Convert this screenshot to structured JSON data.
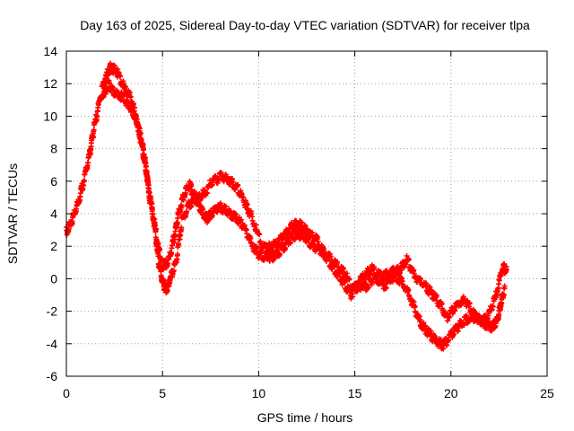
{
  "chart_data": {
    "type": "scatter",
    "title": "Day 163 of 2025, Sidereal Day-to-day VTEC variation (SDTVAR) for receiver tlpa",
    "xlabel": "GPS time / hours",
    "ylabel": "SDTVAR / TECUs",
    "xlim": [
      0,
      25
    ],
    "ylim": [
      -6,
      14
    ],
    "x_ticks": [
      0,
      5,
      10,
      15,
      20,
      25
    ],
    "y_ticks": [
      -6,
      -4,
      -2,
      0,
      2,
      4,
      6,
      8,
      10,
      12,
      14
    ],
    "x_tick_labels": [
      "0",
      "5",
      "10",
      "15",
      "20",
      "25"
    ],
    "y_tick_labels": [
      "-6",
      "-4",
      "-2",
      "0",
      "2",
      "4",
      "6",
      "8",
      "10",
      "12",
      "14"
    ],
    "grid": true,
    "marker": "+",
    "series": [
      {
        "name": "SDTVAR",
        "color": "#ff0000",
        "trace_a": [
          [
            0.0,
            2.9
          ],
          [
            0.3,
            3.6
          ],
          [
            0.6,
            4.6
          ],
          [
            0.9,
            6.0
          ],
          [
            1.2,
            7.6
          ],
          [
            1.4,
            9.0
          ],
          [
            1.7,
            10.8
          ],
          [
            2.0,
            12.3
          ],
          [
            2.3,
            13.0
          ],
          [
            2.6,
            12.8
          ],
          [
            3.0,
            11.8
          ],
          [
            3.4,
            11.0
          ],
          [
            3.7,
            9.5
          ],
          [
            4.0,
            7.7
          ],
          [
            4.2,
            6.3
          ],
          [
            4.5,
            4.0
          ],
          [
            4.8,
            1.8
          ],
          [
            5.0,
            0.8
          ],
          [
            5.3,
            1.0
          ],
          [
            5.6,
            2.5
          ],
          [
            5.8,
            3.8
          ],
          [
            6.1,
            5.1
          ],
          [
            6.4,
            5.8
          ],
          [
            6.7,
            5.0
          ],
          [
            7.0,
            4.3
          ],
          [
            7.3,
            3.7
          ],
          [
            7.6,
            4.1
          ],
          [
            8.0,
            4.4
          ],
          [
            8.4,
            4.1
          ],
          [
            8.8,
            3.8
          ],
          [
            9.2,
            3.3
          ],
          [
            9.6,
            2.2
          ],
          [
            10.0,
            1.5
          ],
          [
            10.4,
            1.3
          ],
          [
            10.8,
            1.4
          ],
          [
            11.2,
            1.8
          ],
          [
            11.6,
            2.4
          ],
          [
            12.0,
            2.8
          ],
          [
            12.4,
            2.6
          ],
          [
            12.8,
            2.0
          ],
          [
            13.2,
            1.8
          ],
          [
            13.6,
            1.2
          ],
          [
            14.0,
            0.5
          ],
          [
            14.4,
            -0.2
          ],
          [
            14.8,
            -1.0
          ],
          [
            15.2,
            -0.4
          ],
          [
            15.6,
            -0.5
          ],
          [
            16.0,
            0.1
          ],
          [
            16.5,
            -0.5
          ],
          [
            17.0,
            0.1
          ],
          [
            17.5,
            -0.2
          ],
          [
            18.0,
            -1.5
          ],
          [
            18.4,
            -2.7
          ],
          [
            18.8,
            -3.3
          ],
          [
            19.2,
            -3.8
          ],
          [
            19.6,
            -4.1
          ],
          [
            20.0,
            -3.5
          ],
          [
            20.4,
            -2.9
          ],
          [
            20.8,
            -2.5
          ],
          [
            21.3,
            -2.4
          ],
          [
            21.7,
            -2.7
          ],
          [
            22.1,
            -3.0
          ],
          [
            22.4,
            -2.6
          ],
          [
            22.6,
            -1.5
          ],
          [
            22.8,
            -0.5
          ]
        ],
        "trace_b": [
          [
            1.9,
            11.2
          ],
          [
            2.2,
            12.0
          ],
          [
            2.5,
            11.4
          ],
          [
            2.9,
            11.2
          ],
          [
            3.3,
            10.6
          ],
          [
            3.6,
            9.9
          ],
          [
            3.9,
            8.6
          ],
          [
            4.1,
            7.2
          ],
          [
            4.3,
            5.2
          ],
          [
            4.6,
            3.2
          ],
          [
            4.8,
            1.0
          ],
          [
            5.0,
            -0.2
          ],
          [
            5.2,
            -0.7
          ],
          [
            5.4,
            0.0
          ],
          [
            5.7,
            1.0
          ],
          [
            6.0,
            3.5
          ],
          [
            6.4,
            4.6
          ],
          [
            6.8,
            4.9
          ],
          [
            7.2,
            5.3
          ],
          [
            7.6,
            6.0
          ],
          [
            8.1,
            6.3
          ],
          [
            8.5,
            6.0
          ],
          [
            8.9,
            5.6
          ],
          [
            9.3,
            4.6
          ],
          [
            9.6,
            3.9
          ],
          [
            10.2,
            2.0
          ],
          [
            10.6,
            1.9
          ],
          [
            11.0,
            2.2
          ],
          [
            11.4,
            2.8
          ],
          [
            11.8,
            3.3
          ],
          [
            12.2,
            3.3
          ],
          [
            12.6,
            2.8
          ],
          [
            13.0,
            2.4
          ],
          [
            13.5,
            1.5
          ],
          [
            14.0,
            0.9
          ],
          [
            14.5,
            0.3
          ],
          [
            14.9,
            -0.7
          ],
          [
            15.5,
            0.2
          ],
          [
            15.9,
            0.6
          ],
          [
            16.4,
            0.1
          ],
          [
            16.9,
            0.4
          ],
          [
            17.3,
            0.5
          ],
          [
            17.7,
            1.2
          ],
          [
            18.1,
            0.2
          ],
          [
            18.6,
            -0.4
          ],
          [
            19.0,
            -0.9
          ],
          [
            19.4,
            -1.5
          ],
          [
            19.8,
            -2.4
          ],
          [
            20.2,
            -1.8
          ],
          [
            20.7,
            -1.3
          ],
          [
            21.1,
            -2.0
          ],
          [
            21.5,
            -2.6
          ],
          [
            21.9,
            -2.4
          ],
          [
            22.3,
            -1.2
          ],
          [
            22.7,
            0.7
          ],
          [
            22.9,
            0.5
          ]
        ]
      }
    ]
  }
}
